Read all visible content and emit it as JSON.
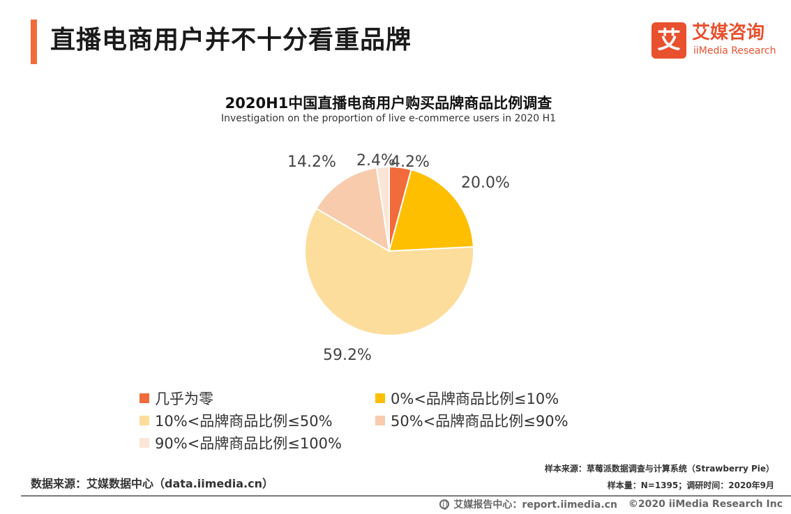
{
  "header": {
    "title": "直播电商用户并不十分看重品牌",
    "logo_cn": "艾媒咨询",
    "logo_en": "iiMedia Research",
    "logo_mark": "艾"
  },
  "chart_data": {
    "type": "pie",
    "title": "2020H1中国直播电商用户购买品牌商品比例调查",
    "subtitle": "Investigation on the proportion of live e-commerce users  in 2020 H1",
    "categories": [
      "几乎为零",
      "0%<品牌商品比例≤10%",
      "10%<品牌商品比例≤50%",
      "50%<品牌商品比例≤90%",
      "90%<品牌商品比例≤100%"
    ],
    "values": [
      4.2,
      20.0,
      59.2,
      14.2,
      2.4
    ],
    "value_labels": [
      "4.2%",
      "20.0%",
      "59.2%",
      "14.2%",
      "2.4%"
    ],
    "colors": [
      "#f26b3a",
      "#fdbf00",
      "#fddd9c",
      "#f8cbad",
      "#fbe5d6"
    ],
    "start": "12 o'clock, clockwise",
    "legend_position": "bottom"
  },
  "sources": {
    "left": "数据来源：艾媒数据中心（data.iimedia.cn）",
    "sample_source": "样本来源：草莓派数据调查与计算系统（Strawberry Pie）",
    "sample_size": "样本量：N=1395；调研时间：2020年9月"
  },
  "footer": {
    "center": "艾媒报告中心：report.iimedia.cn",
    "copyright": "©2020  iiMedia Research  Inc"
  }
}
